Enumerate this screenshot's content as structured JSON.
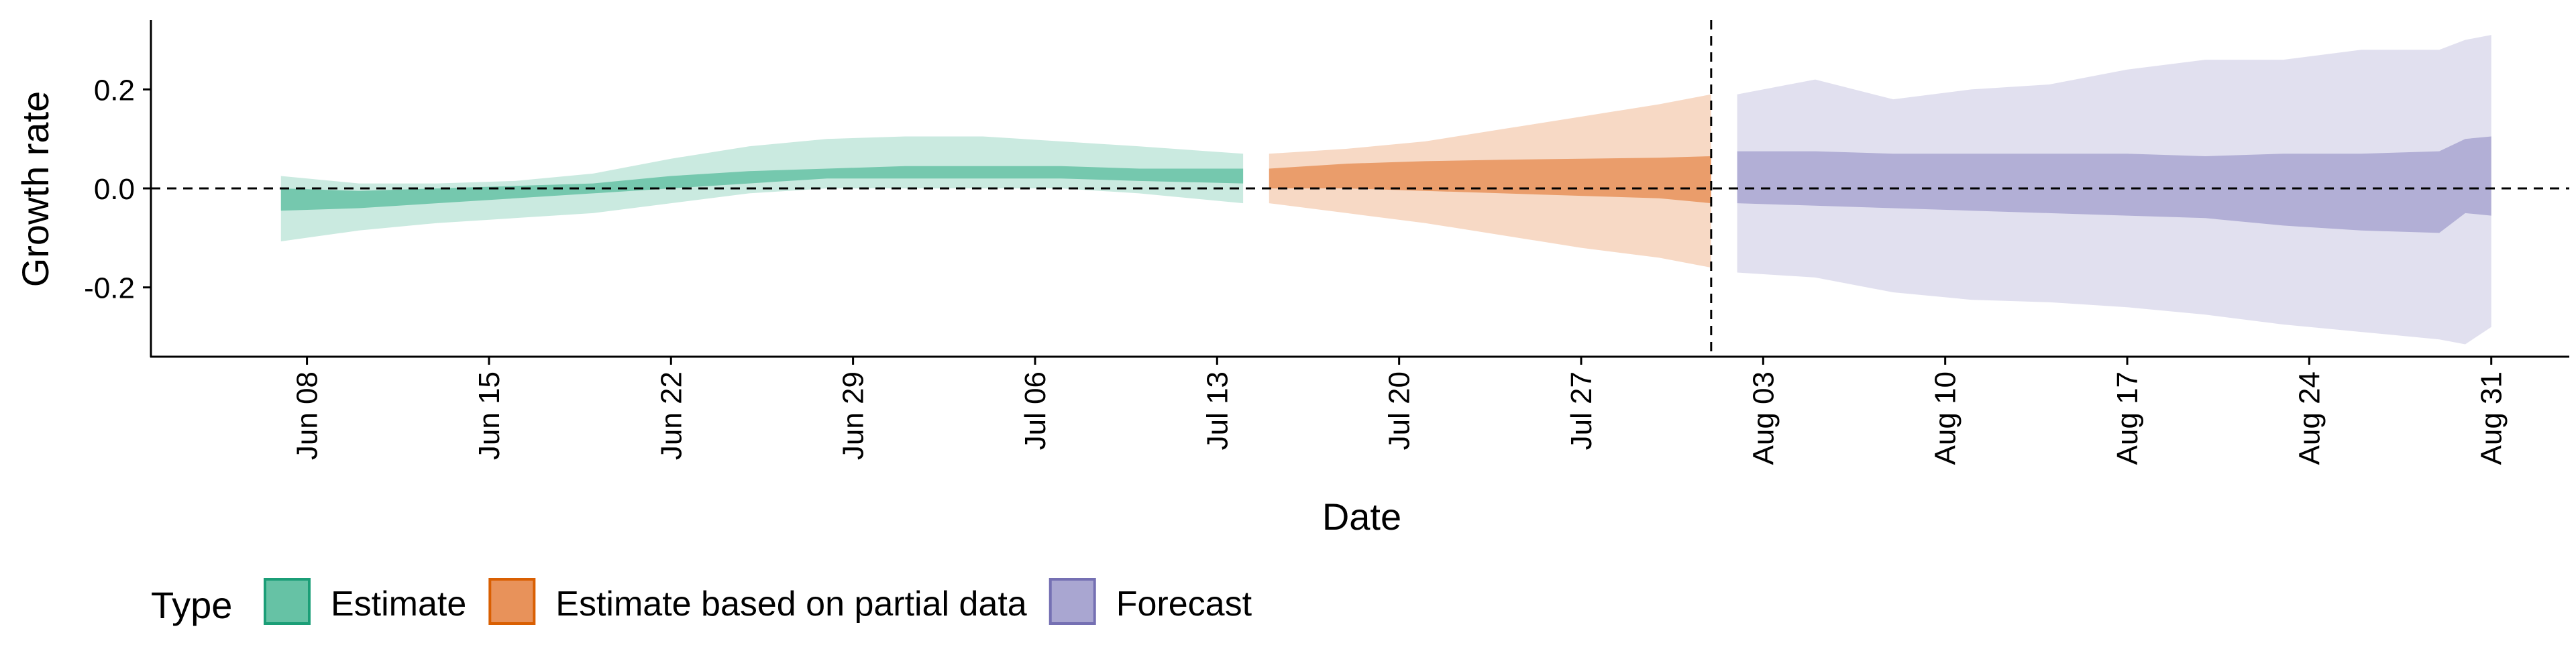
{
  "chart_data": {
    "type": "area",
    "title": "",
    "xlabel": "Date",
    "ylabel": "Growth rate",
    "x_axis": {
      "kind": "date",
      "range": [
        "2020-06-02",
        "2020-09-03"
      ],
      "ticks": [
        {
          "date": "2020-06-08",
          "label": "Jun 08"
        },
        {
          "date": "2020-06-15",
          "label": "Jun 15"
        },
        {
          "date": "2020-06-22",
          "label": "Jun 22"
        },
        {
          "date": "2020-06-29",
          "label": "Jun 29"
        },
        {
          "date": "2020-07-06",
          "label": "Jul 06"
        },
        {
          "date": "2020-07-13",
          "label": "Jul 13"
        },
        {
          "date": "2020-07-20",
          "label": "Jul 20"
        },
        {
          "date": "2020-07-27",
          "label": "Jul 27"
        },
        {
          "date": "2020-08-03",
          "label": "Aug 03"
        },
        {
          "date": "2020-08-10",
          "label": "Aug 10"
        },
        {
          "date": "2020-08-17",
          "label": "Aug 17"
        },
        {
          "date": "2020-08-24",
          "label": "Aug 24"
        },
        {
          "date": "2020-08-31",
          "label": "Aug 31"
        }
      ]
    },
    "y_axis": {
      "range": [
        -0.34,
        0.34
      ],
      "ticks": [
        {
          "value": 0.2,
          "label": "0.2"
        },
        {
          "value": 0.0,
          "label": "0.0"
        },
        {
          "value": -0.2,
          "label": "-0.2"
        }
      ]
    },
    "reference_lines": {
      "horizontal_y": 0.0,
      "vertical_date": "2020-08-01",
      "style": "dashed"
    },
    "grid": false,
    "legend": {
      "title": "Type",
      "placement": "bottom-left",
      "entries": [
        {
          "label": "Estimate",
          "fill": "#66c2a5",
          "border": "#1b9e77"
        },
        {
          "label": "Estimate based on partial data",
          "fill": "#e8925a",
          "border": "#d95f02"
        },
        {
          "label": "Forecast",
          "fill": "#a9a6d1",
          "border": "#7570b3"
        }
      ]
    },
    "series": [
      {
        "name": "Estimate",
        "color": "#66c2a5",
        "x": [
          "2020-06-07",
          "2020-06-10",
          "2020-06-13",
          "2020-06-16",
          "2020-06-19",
          "2020-06-22",
          "2020-06-25",
          "2020-06-28",
          "2020-07-01",
          "2020-07-04",
          "2020-07-07",
          "2020-07-10",
          "2020-07-14"
        ],
        "lower90": [
          -0.107,
          -0.085,
          -0.07,
          -0.06,
          -0.05,
          -0.03,
          -0.01,
          0.0,
          0.0,
          0.0,
          0.0,
          -0.01,
          -0.03
        ],
        "upper90": [
          0.025,
          0.01,
          0.01,
          0.015,
          0.03,
          0.06,
          0.085,
          0.1,
          0.105,
          0.105,
          0.095,
          0.085,
          0.07
        ],
        "lower50": [
          -0.045,
          -0.04,
          -0.03,
          -0.02,
          -0.01,
          0.0,
          0.01,
          0.02,
          0.02,
          0.02,
          0.02,
          0.015,
          0.01
        ],
        "upper50": [
          0.0,
          -0.005,
          0.0,
          0.005,
          0.01,
          0.025,
          0.035,
          0.04,
          0.045,
          0.045,
          0.045,
          0.04,
          0.04
        ]
      },
      {
        "name": "Estimate based on partial data",
        "color": "#e8925a",
        "x": [
          "2020-07-15",
          "2020-07-18",
          "2020-07-21",
          "2020-07-24",
          "2020-07-27",
          "2020-07-30",
          "2020-08-01"
        ],
        "lower90": [
          -0.03,
          -0.05,
          -0.07,
          -0.095,
          -0.12,
          -0.14,
          -0.16
        ],
        "upper90": [
          0.07,
          0.08,
          0.095,
          0.12,
          0.145,
          0.17,
          0.19
        ],
        "lower50": [
          0.0,
          0.0,
          -0.005,
          -0.01,
          -0.015,
          -0.02,
          -0.03
        ],
        "upper50": [
          0.04,
          0.05,
          0.055,
          0.058,
          0.06,
          0.062,
          0.065
        ]
      },
      {
        "name": "Forecast",
        "color": "#a9a6d1",
        "x": [
          "2020-08-02",
          "2020-08-05",
          "2020-08-08",
          "2020-08-11",
          "2020-08-14",
          "2020-08-17",
          "2020-08-20",
          "2020-08-23",
          "2020-08-26",
          "2020-08-29",
          "2020-08-30",
          "2020-08-31"
        ],
        "lower90": [
          -0.17,
          -0.18,
          -0.21,
          -0.225,
          -0.23,
          -0.24,
          -0.255,
          -0.275,
          -0.29,
          -0.305,
          -0.315,
          -0.28
        ],
        "upper90": [
          0.19,
          0.22,
          0.18,
          0.2,
          0.21,
          0.24,
          0.26,
          0.26,
          0.28,
          0.28,
          0.3,
          0.31
        ],
        "lower50": [
          -0.03,
          -0.035,
          -0.04,
          -0.045,
          -0.05,
          -0.055,
          -0.06,
          -0.075,
          -0.085,
          -0.09,
          -0.05,
          -0.055
        ],
        "upper50": [
          0.075,
          0.075,
          0.07,
          0.07,
          0.07,
          0.07,
          0.065,
          0.07,
          0.07,
          0.075,
          0.1,
          0.105
        ]
      }
    ]
  }
}
